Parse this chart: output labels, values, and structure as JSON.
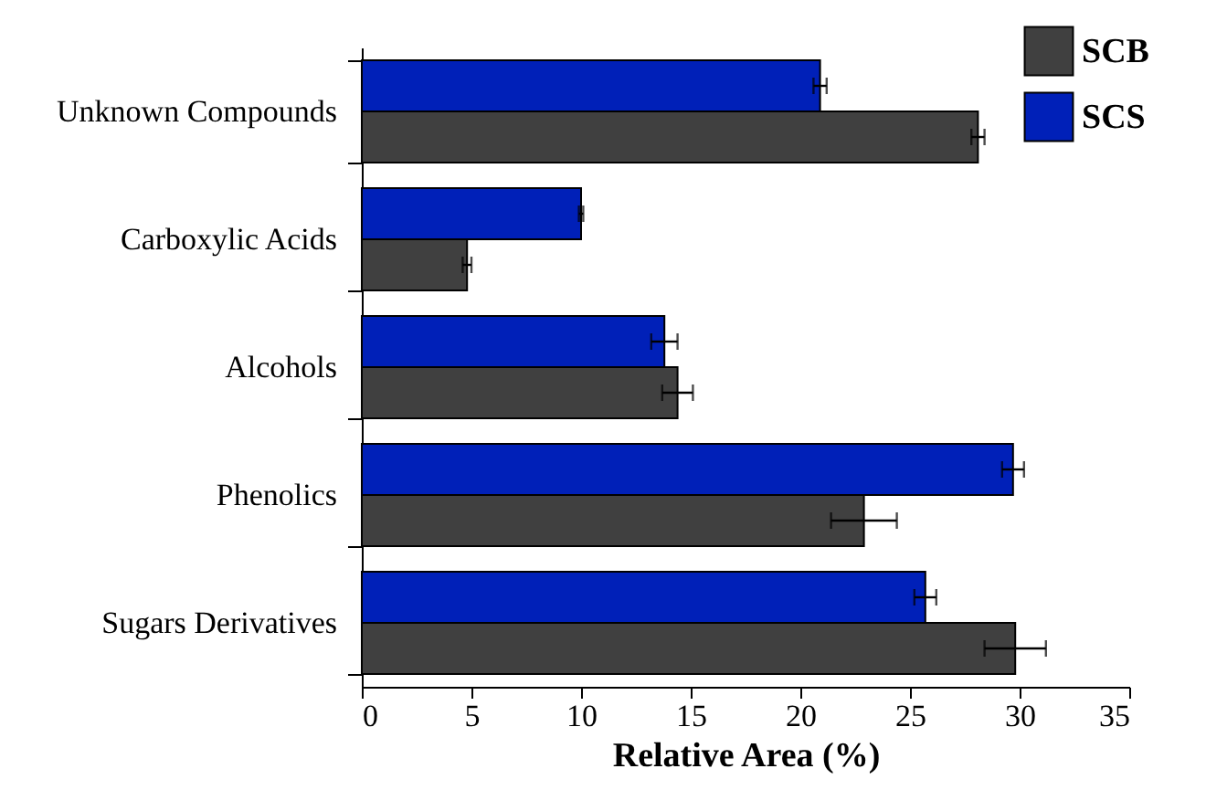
{
  "chart_data": {
    "type": "bar",
    "orientation": "horizontal",
    "xlabel": "Relative Area (%)",
    "categories": [
      "Unknown Compounds",
      "Carboxylic Acids",
      "Alcohols",
      "Phenolics",
      "Sugars Derivatives"
    ],
    "series": [
      {
        "name": "SCB",
        "color": "#404040",
        "values": [
          28.1,
          4.8,
          14.4,
          22.9,
          29.8
        ],
        "errors": [
          0.3,
          0.2,
          0.7,
          1.5,
          1.4
        ]
      },
      {
        "name": "SCS",
        "color": "#0020b8",
        "values": [
          20.9,
          10.0,
          13.8,
          29.7,
          25.7
        ],
        "errors": [
          0.3,
          0.1,
          0.6,
          0.5,
          0.5
        ]
      }
    ],
    "xlim": [
      0,
      35
    ],
    "xticks": [
      0,
      5,
      10,
      15,
      20,
      25,
      30,
      35
    ],
    "grid": false,
    "legend": "top right"
  }
}
